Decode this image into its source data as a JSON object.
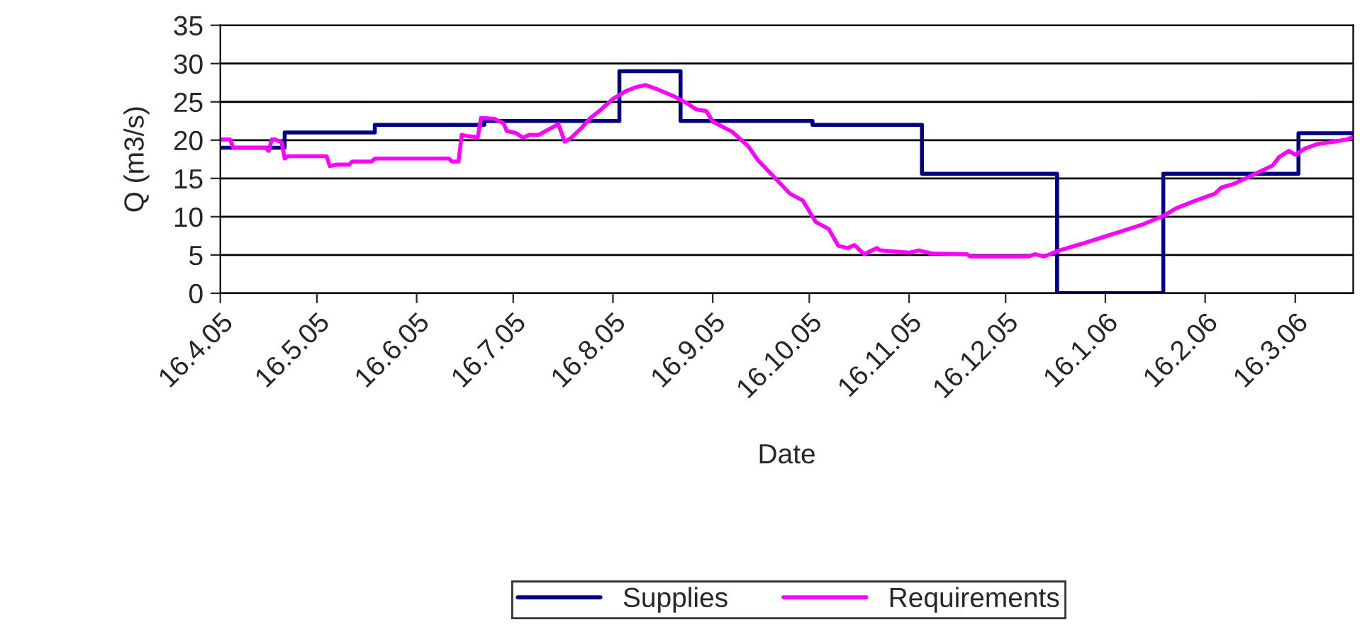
{
  "chart_data": {
    "type": "line",
    "xlabel": "Date",
    "ylabel": "Q (m3/s)",
    "xlim": [
      "2005-04-16",
      "2006-04-03"
    ],
    "xticks": [
      {
        "value": "2005-04-16",
        "label": "16.4.05"
      },
      {
        "value": "2005-05-16",
        "label": "16.5.05"
      },
      {
        "value": "2005-06-16",
        "label": "16.6.05"
      },
      {
        "value": "2005-07-16",
        "label": "16.7.05"
      },
      {
        "value": "2005-08-16",
        "label": "16.8.05"
      },
      {
        "value": "2005-09-16",
        "label": "16.9.05"
      },
      {
        "value": "2005-10-16",
        "label": "16.10.05"
      },
      {
        "value": "2005-11-16",
        "label": "16.11.05"
      },
      {
        "value": "2005-12-16",
        "label": "16.12.05"
      },
      {
        "value": "2006-01-16",
        "label": "16.1.06"
      },
      {
        "value": "2006-02-16",
        "label": "16.2.06"
      },
      {
        "value": "2006-03-16",
        "label": "16.3.06"
      }
    ],
    "ylim": [
      0,
      35
    ],
    "yticks": [
      0,
      5,
      10,
      15,
      20,
      25,
      30,
      35
    ],
    "grid": "y",
    "legend": "bottom",
    "marker": "none",
    "line_style": "solid",
    "series": [
      {
        "name": "Supplies",
        "type": "step",
        "color": "#000080",
        "x": [
          "2005-04-16",
          "2005-05-06",
          "2005-06-03",
          "2005-07-07",
          "2005-08-18",
          "2005-09-06",
          "2005-10-17",
          "2005-11-20",
          "2006-01-01",
          "2006-02-03",
          "2006-03-17",
          "2006-04-03"
        ],
        "values": [
          19,
          21,
          22,
          22.5,
          29,
          22.5,
          22,
          15.6,
          0,
          15.6,
          20.9,
          20.9
        ]
      },
      {
        "name": "Requirements",
        "color": "#ff00ff",
        "x": [
          "2005-04-16",
          "2005-04-19",
          "2005-04-20",
          "2005-04-30",
          "2005-05-01",
          "2005-05-02",
          "2005-05-03",
          "2005-05-05",
          "2005-05-06",
          "2005-05-07",
          "2005-05-19",
          "2005-05-20",
          "2005-05-22",
          "2005-05-26",
          "2005-05-27",
          "2005-06-02",
          "2005-06-03",
          "2005-06-26",
          "2005-06-27",
          "2005-06-29",
          "2005-06-30",
          "2005-07-02",
          "2005-07-05",
          "2005-07-06",
          "2005-07-10",
          "2005-07-13",
          "2005-07-14",
          "2005-07-17",
          "2005-07-19",
          "2005-07-21",
          "2005-07-24",
          "2005-07-27",
          "2005-07-30",
          "2005-08-01",
          "2005-08-03",
          "2005-08-06",
          "2005-08-09",
          "2005-08-12",
          "2005-08-16",
          "2005-08-20",
          "2005-08-23",
          "2005-08-26",
          "2005-08-30",
          "2005-09-04",
          "2005-09-08",
          "2005-09-11",
          "2005-09-14",
          "2005-09-16",
          "2005-09-22",
          "2005-09-27",
          "2005-09-30",
          "2005-10-05",
          "2005-10-10",
          "2005-10-14",
          "2005-10-18",
          "2005-10-22",
          "2005-10-25",
          "2005-10-28",
          "2005-10-30",
          "2005-11-02",
          "2005-11-06",
          "2005-11-07",
          "2005-11-16",
          "2005-11-19",
          "2005-11-23",
          "2005-12-04",
          "2005-12-05",
          "2005-12-23",
          "2005-12-25",
          "2005-12-28",
          "2006-01-01",
          "2006-01-09",
          "2006-01-15",
          "2006-01-21",
          "2006-01-27",
          "2006-02-03",
          "2006-02-07",
          "2006-02-13",
          "2006-02-19",
          "2006-02-21",
          "2006-02-25",
          "2006-03-03",
          "2006-03-09",
          "2006-03-11",
          "2006-03-14",
          "2006-03-16",
          "2006-03-19",
          "2006-03-23",
          "2006-03-28",
          "2006-04-01",
          "2006-04-03"
        ],
        "values": [
          20.1,
          20.1,
          19.0,
          19.0,
          18.6,
          20.1,
          20.1,
          19.7,
          17.6,
          17.9,
          17.9,
          16.6,
          16.8,
          16.8,
          17.2,
          17.2,
          17.6,
          17.6,
          17.2,
          17.2,
          20.7,
          20.5,
          20.4,
          22.9,
          22.8,
          22.2,
          21.2,
          20.9,
          20.3,
          20.7,
          20.7,
          21.4,
          22.1,
          19.8,
          20.3,
          21.5,
          22.9,
          23.9,
          25.4,
          26.4,
          26.9,
          27.2,
          26.6,
          25.7,
          24.8,
          24.0,
          23.8,
          22.4,
          21.1,
          19.2,
          17.4,
          15.2,
          13.0,
          12.1,
          9.3,
          8.4,
          6.2,
          5.9,
          6.3,
          5.1,
          5.9,
          5.6,
          5.3,
          5.6,
          5.2,
          5.1,
          4.8,
          4.8,
          5.1,
          4.8,
          5.5,
          6.5,
          7.3,
          8.1,
          8.9,
          10.1,
          11.1,
          12.1,
          13.0,
          13.8,
          14.3,
          15.5,
          16.7,
          17.8,
          18.6,
          18.1,
          18.9,
          19.5,
          19.8,
          20.1,
          20.4
        ]
      }
    ]
  }
}
